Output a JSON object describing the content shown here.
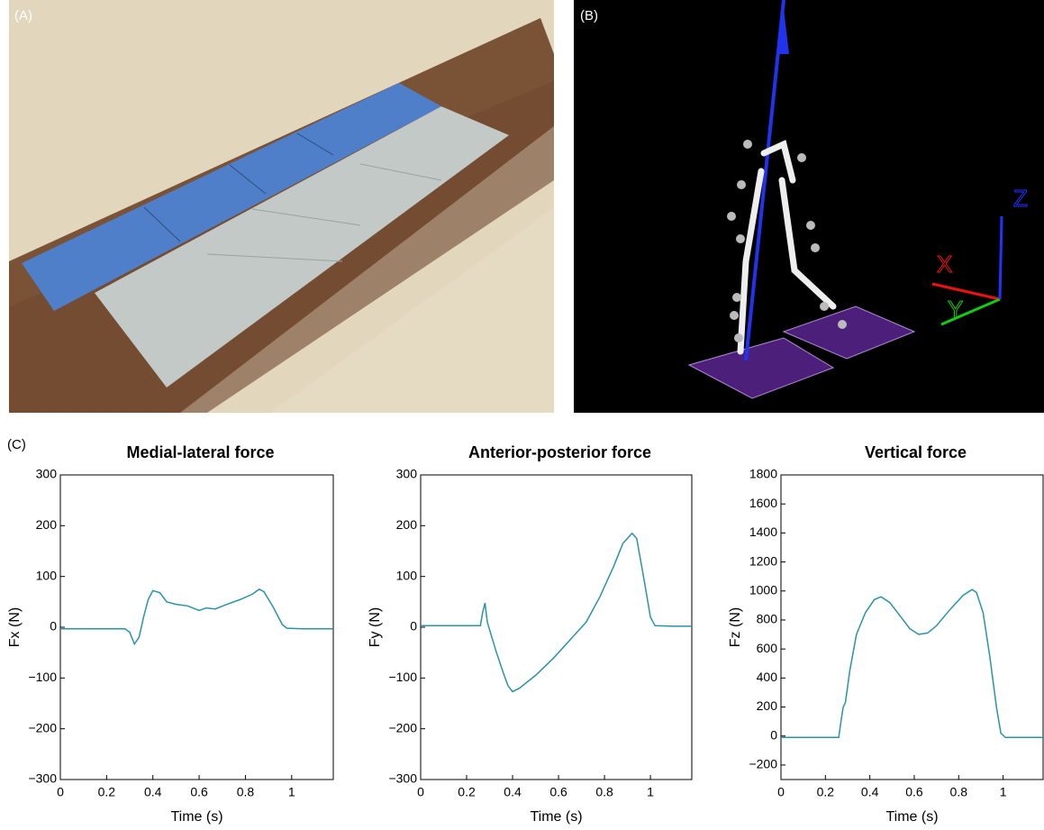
{
  "panel_labels": [
    "(A)",
    "(B)",
    "(C)"
  ],
  "scene_axes": [
    "X",
    "Y",
    "Z"
  ],
  "chart_data": [
    {
      "type": "line",
      "title": "Medial-lateral force",
      "x_label": "Time (s)",
      "y_label": "Fx (N)",
      "xlim": [
        0,
        1.18
      ],
      "xticks": [
        0,
        0.2,
        0.4,
        0.6,
        0.8,
        1
      ],
      "ylim": [
        -300,
        300
      ],
      "yticks": [
        {
          "value": -300,
          "label": "−300"
        },
        {
          "value": -200,
          "label": "−200"
        },
        {
          "value": -100,
          "label": "−100"
        },
        0,
        100,
        200,
        300
      ],
      "series": [
        {
          "color": "#2a93a6",
          "x": [
            0,
            0.28,
            0.3,
            0.32,
            0.34,
            0.36,
            0.38,
            0.4,
            0.43,
            0.46,
            0.5,
            0.55,
            0.6,
            0.63,
            0.67,
            0.72,
            0.78,
            0.83,
            0.86,
            0.88,
            0.92,
            0.96,
            0.98,
            1.05,
            1.18
          ],
          "values": [
            -3,
            -3,
            -10,
            -33,
            -20,
            20,
            55,
            72,
            68,
            50,
            45,
            42,
            33,
            38,
            36,
            45,
            55,
            65,
            75,
            70,
            40,
            5,
            -2,
            -3,
            -3
          ]
        }
      ]
    },
    {
      "type": "line",
      "title": "Anterior-posterior force",
      "x_label": "Time (s)",
      "y_label": "Fy (N)",
      "xlim": [
        0,
        1.18
      ],
      "xticks": [
        0,
        0.2,
        0.4,
        0.6,
        0.8,
        1
      ],
      "ylim": [
        -300,
        300
      ],
      "yticks": [
        {
          "value": -300,
          "label": "−300"
        },
        {
          "value": -200,
          "label": "−200"
        },
        {
          "value": -100,
          "label": "−100"
        },
        0,
        100,
        200,
        300
      ],
      "series": [
        {
          "color": "#2a93a6",
          "x": [
            0,
            0.26,
            0.27,
            0.28,
            0.29,
            0.3,
            0.33,
            0.36,
            0.38,
            0.4,
            0.43,
            0.5,
            0.58,
            0.65,
            0.72,
            0.78,
            0.84,
            0.88,
            0.92,
            0.94,
            0.97,
            1.0,
            1.02,
            1.1,
            1.18
          ],
          "values": [
            3,
            3,
            30,
            48,
            10,
            -5,
            -50,
            -90,
            -115,
            -127,
            -120,
            -95,
            -60,
            -25,
            10,
            60,
            120,
            165,
            185,
            175,
            100,
            20,
            3,
            2,
            2
          ]
        }
      ]
    },
    {
      "type": "line",
      "title": "Vertical force",
      "x_label": "Time (s)",
      "y_label": "Fz (N)",
      "xlim": [
        0,
        1.18
      ],
      "xticks": [
        0,
        0.2,
        0.4,
        0.6,
        0.8,
        1
      ],
      "ylim": [
        -300,
        1800
      ],
      "yticks": [
        {
          "value": -200,
          "label": "−200"
        },
        0,
        200,
        400,
        600,
        800,
        1000,
        1200,
        1400,
        1600,
        1800
      ],
      "series": [
        {
          "color": "#2a93a6",
          "x": [
            0,
            0.26,
            0.27,
            0.28,
            0.29,
            0.31,
            0.34,
            0.38,
            0.42,
            0.45,
            0.49,
            0.54,
            0.58,
            0.62,
            0.66,
            0.7,
            0.76,
            0.82,
            0.86,
            0.88,
            0.91,
            0.94,
            0.97,
            0.99,
            1.01,
            1.18
          ],
          "values": [
            -10,
            -10,
            100,
            200,
            230,
            450,
            700,
            850,
            940,
            960,
            920,
            820,
            740,
            700,
            710,
            760,
            870,
            970,
            1010,
            990,
            850,
            550,
            200,
            20,
            -10,
            -10
          ]
        }
      ]
    }
  ]
}
